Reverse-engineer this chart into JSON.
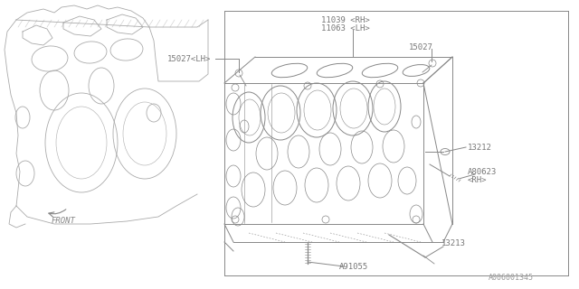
{
  "bg_color": "#ffffff",
  "lc": "#888888",
  "tc": "#777777",
  "fig_w": 6.4,
  "fig_h": 3.2,
  "dpi": 100,
  "footer": "A006001345",
  "labels": {
    "l1a": "11039 <RH>",
    "l1b": "11063 <LH>",
    "l2": "15027",
    "l3": "15027<LH>",
    "l4": "13212",
    "l5a": "A80623",
    "l5b": "<RH>",
    "l6": "13213",
    "l7": "A91055",
    "front": "FRONT"
  }
}
